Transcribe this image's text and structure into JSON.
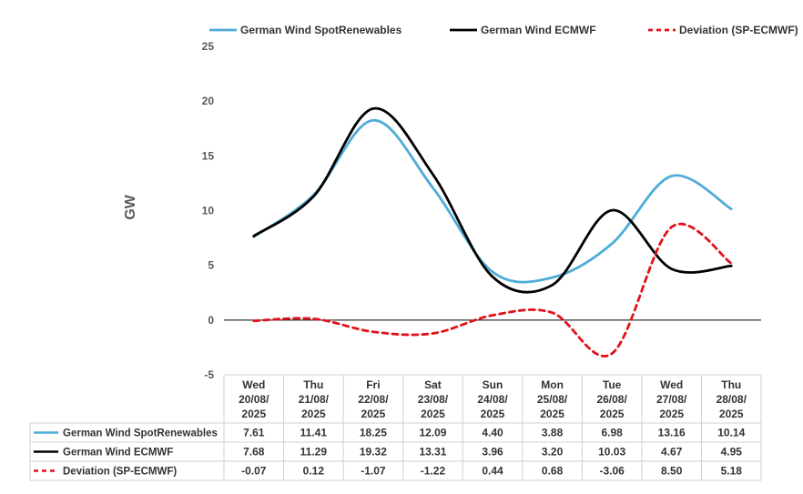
{
  "chart_data": {
    "type": "line",
    "title": "",
    "ylabel": "GW",
    "xlabel": "",
    "ylim": [
      -5,
      25
    ],
    "yticks": [
      "25",
      "20",
      "15",
      "10",
      "5",
      "0",
      "-5"
    ],
    "categories": [
      [
        "Wed",
        "20/08/",
        "2025"
      ],
      [
        "Thu",
        "21/08/",
        "2025"
      ],
      [
        "Fri",
        "22/08/",
        "2025"
      ],
      [
        "Sat",
        "23/08/",
        "2025"
      ],
      [
        "Sun",
        "24/08/",
        "2025"
      ],
      [
        "Mon",
        "25/08/",
        "2025"
      ],
      [
        "Tue",
        "26/08/",
        "2025"
      ],
      [
        "Wed",
        "27/08/",
        "2025"
      ],
      [
        "Thu",
        "28/08/",
        "2025"
      ]
    ],
    "legend_position": "top",
    "series": [
      {
        "name": "German Wind SpotRenewables",
        "color": "#4EACD8",
        "style": "solid",
        "values": [
          7.61,
          11.41,
          18.25,
          12.09,
          4.4,
          3.88,
          6.98,
          13.16,
          10.14
        ],
        "labels": [
          "7.61",
          "11.41",
          "18.25",
          "12.09",
          "4.40",
          "3.88",
          "6.98",
          "13.16",
          "10.14"
        ]
      },
      {
        "name": "German Wind ECMWF",
        "color": "#000000",
        "style": "solid",
        "values": [
          7.68,
          11.29,
          19.32,
          13.31,
          3.96,
          3.2,
          10.03,
          4.67,
          4.95
        ],
        "labels": [
          "7.68",
          "11.29",
          "19.32",
          "13.31",
          "3.96",
          "3.20",
          "10.03",
          "4.67",
          "4.95"
        ]
      },
      {
        "name": "Deviation (SP-ECMWF)",
        "color": "#E3111B",
        "style": "dashed",
        "values": [
          -0.07,
          0.12,
          -1.07,
          -1.22,
          0.44,
          0.68,
          -3.06,
          8.5,
          5.18
        ],
        "labels": [
          "-0.07",
          "0.12",
          "-1.07",
          "-1.22",
          "0.44",
          "0.68",
          "-3.06",
          "8.50",
          "5.18"
        ]
      }
    ]
  }
}
